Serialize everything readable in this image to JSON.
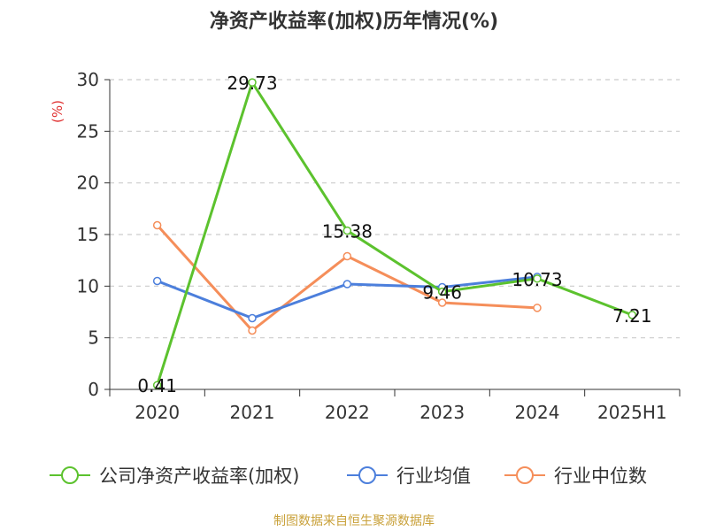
{
  "source_text": "制图数据来自恒生聚源数据库",
  "colors": {
    "grid": "#cccccc",
    "axis": "#333333",
    "ylabel": "#e03030",
    "source": "#c9a13a"
  },
  "chart_data": {
    "type": "line",
    "title": "净资产收益率(加权)历年情况(%)",
    "xlabel": "",
    "ylabel": "(%)",
    "categories": [
      "2020",
      "2021",
      "2022",
      "2023",
      "2024",
      "2025H1"
    ],
    "ylim": [
      0,
      30
    ],
    "yticks": [
      0,
      5,
      10,
      15,
      20,
      25,
      30
    ],
    "grid": true,
    "legend_position": "bottom",
    "series": [
      {
        "name": "公司净资产收益率(加权)",
        "color": "#5cc22e",
        "values": [
          0.41,
          29.73,
          15.38,
          9.46,
          10.73,
          7.21
        ],
        "labels": [
          "0.41",
          "29.73",
          "15.38",
          "9.46",
          "10.73",
          "7.21"
        ]
      },
      {
        "name": "行业均值",
        "color": "#4c7fdc",
        "values": [
          10.5,
          6.9,
          10.2,
          9.9,
          10.9,
          null
        ]
      },
      {
        "name": "行业中位数",
        "color": "#f58e5a",
        "values": [
          15.9,
          5.7,
          12.9,
          8.4,
          7.9,
          null
        ]
      }
    ]
  }
}
